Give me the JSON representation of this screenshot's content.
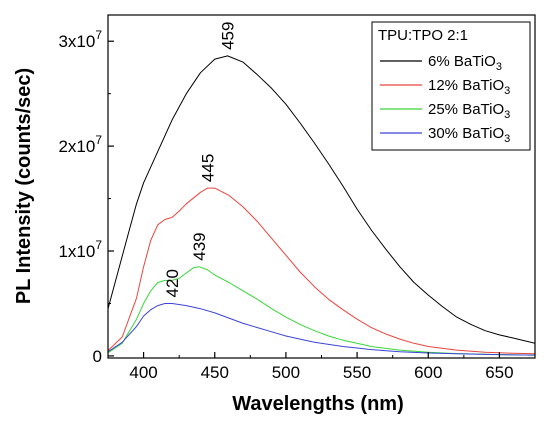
{
  "chart_data": {
    "type": "line",
    "title": "",
    "xlabel": "Wavelengths (nm)",
    "ylabel": "PL Intensity (counts/sec)",
    "xlim": [
      375,
      675
    ],
    "ylim": [
      -200000,
      32500000
    ],
    "x_ticks": [
      400,
      450,
      500,
      550,
      600,
      650
    ],
    "x_tick_labels": [
      "400",
      "450",
      "500",
      "550",
      "600",
      "650"
    ],
    "y_ticks": [
      0,
      10000000,
      20000000,
      30000000
    ],
    "y_tick_labels": [
      {
        "base": "0",
        "exp": ""
      },
      {
        "base": "1x10",
        "exp": "7"
      },
      {
        "base": "2x10",
        "exp": "7"
      },
      {
        "base": "3x10",
        "exp": "7"
      }
    ],
    "grid": false,
    "legend_placement": "top-right",
    "legend_title": "TPU:TPO 2:1",
    "series": [
      {
        "name": "6% BaTiO",
        "name_sub": "3",
        "color": "#000000",
        "points": [
          [
            375,
            4500000
          ],
          [
            380,
            7000000
          ],
          [
            385,
            9500000
          ],
          [
            390,
            12000000
          ],
          [
            395,
            14500000
          ],
          [
            400,
            16500000
          ],
          [
            410,
            19500000
          ],
          [
            420,
            22500000
          ],
          [
            430,
            25000000
          ],
          [
            440,
            27000000
          ],
          [
            450,
            28300000
          ],
          [
            459,
            28600000
          ],
          [
            470,
            28000000
          ],
          [
            480,
            26800000
          ],
          [
            490,
            25500000
          ],
          [
            500,
            24000000
          ],
          [
            510,
            22200000
          ],
          [
            520,
            20300000
          ],
          [
            530,
            18300000
          ],
          [
            540,
            16200000
          ],
          [
            550,
            14000000
          ],
          [
            560,
            12000000
          ],
          [
            570,
            10200000
          ],
          [
            580,
            8500000
          ],
          [
            590,
            7000000
          ],
          [
            600,
            5800000
          ],
          [
            610,
            4700000
          ],
          [
            620,
            3700000
          ],
          [
            630,
            3000000
          ],
          [
            640,
            2400000
          ],
          [
            650,
            2000000
          ],
          [
            660,
            1700000
          ],
          [
            675,
            1200000
          ]
        ]
      },
      {
        "name": "12% BaTiO",
        "name_sub": "3",
        "color": "#e8453c",
        "points": [
          [
            375,
            500000
          ],
          [
            385,
            1800000
          ],
          [
            395,
            5500000
          ],
          [
            400,
            8500000
          ],
          [
            405,
            11000000
          ],
          [
            410,
            12500000
          ],
          [
            415,
            13000000
          ],
          [
            420,
            13200000
          ],
          [
            425,
            13800000
          ],
          [
            430,
            14500000
          ],
          [
            440,
            15600000
          ],
          [
            445,
            16000000
          ],
          [
            450,
            16000000
          ],
          [
            460,
            15300000
          ],
          [
            470,
            14200000
          ],
          [
            480,
            12800000
          ],
          [
            490,
            11200000
          ],
          [
            500,
            9600000
          ],
          [
            510,
            8000000
          ],
          [
            520,
            6600000
          ],
          [
            530,
            5400000
          ],
          [
            540,
            4400000
          ],
          [
            550,
            3500000
          ],
          [
            560,
            2700000
          ],
          [
            570,
            2100000
          ],
          [
            580,
            1600000
          ],
          [
            590,
            1200000
          ],
          [
            600,
            900000
          ],
          [
            620,
            550000
          ],
          [
            640,
            350000
          ],
          [
            660,
            250000
          ],
          [
            675,
            200000
          ]
        ]
      },
      {
        "name": "25% BaTiO",
        "name_sub": "3",
        "color": "#39d639",
        "points": [
          [
            375,
            300000
          ],
          [
            385,
            1200000
          ],
          [
            395,
            3500000
          ],
          [
            400,
            5000000
          ],
          [
            405,
            6200000
          ],
          [
            410,
            7000000
          ],
          [
            415,
            7200000
          ],
          [
            420,
            7200000
          ],
          [
            425,
            7400000
          ],
          [
            430,
            7900000
          ],
          [
            435,
            8400000
          ],
          [
            439,
            8500000
          ],
          [
            445,
            8200000
          ],
          [
            450,
            7700000
          ],
          [
            460,
            7000000
          ],
          [
            470,
            6200000
          ],
          [
            480,
            5400000
          ],
          [
            490,
            4500000
          ],
          [
            500,
            3700000
          ],
          [
            510,
            3000000
          ],
          [
            520,
            2400000
          ],
          [
            530,
            1900000
          ],
          [
            540,
            1500000
          ],
          [
            550,
            1200000
          ],
          [
            560,
            900000
          ],
          [
            580,
            550000
          ],
          [
            600,
            350000
          ],
          [
            620,
            220000
          ],
          [
            640,
            150000
          ],
          [
            660,
            100000
          ],
          [
            675,
            80000
          ]
        ]
      },
      {
        "name": "30% BaTiO",
        "name_sub": "3",
        "color": "#3b45d6",
        "points": [
          [
            375,
            400000
          ],
          [
            385,
            1300000
          ],
          [
            395,
            2800000
          ],
          [
            400,
            3800000
          ],
          [
            405,
            4400000
          ],
          [
            410,
            4800000
          ],
          [
            415,
            5000000
          ],
          [
            420,
            5000000
          ],
          [
            430,
            4800000
          ],
          [
            440,
            4500000
          ],
          [
            450,
            4100000
          ],
          [
            460,
            3600000
          ],
          [
            470,
            3100000
          ],
          [
            480,
            2700000
          ],
          [
            490,
            2300000
          ],
          [
            500,
            1900000
          ],
          [
            510,
            1600000
          ],
          [
            520,
            1300000
          ],
          [
            530,
            1100000
          ],
          [
            540,
            900000
          ],
          [
            550,
            750000
          ],
          [
            560,
            600000
          ],
          [
            580,
            400000
          ],
          [
            600,
            280000
          ],
          [
            620,
            200000
          ],
          [
            640,
            140000
          ],
          [
            660,
            100000
          ],
          [
            675,
            80000
          ]
        ]
      }
    ],
    "annotations": [
      {
        "text": "459",
        "x": 459,
        "y": 28600000,
        "rotate": -90,
        "series": 0
      },
      {
        "text": "445",
        "x": 445,
        "y": 16000000,
        "rotate": -90,
        "series": 1
      },
      {
        "text": "439",
        "x": 439,
        "y": 8500000,
        "rotate": -90,
        "series": 2
      },
      {
        "text": "420",
        "x": 420,
        "y": 5000000,
        "rotate": -90,
        "series": 3
      }
    ]
  }
}
